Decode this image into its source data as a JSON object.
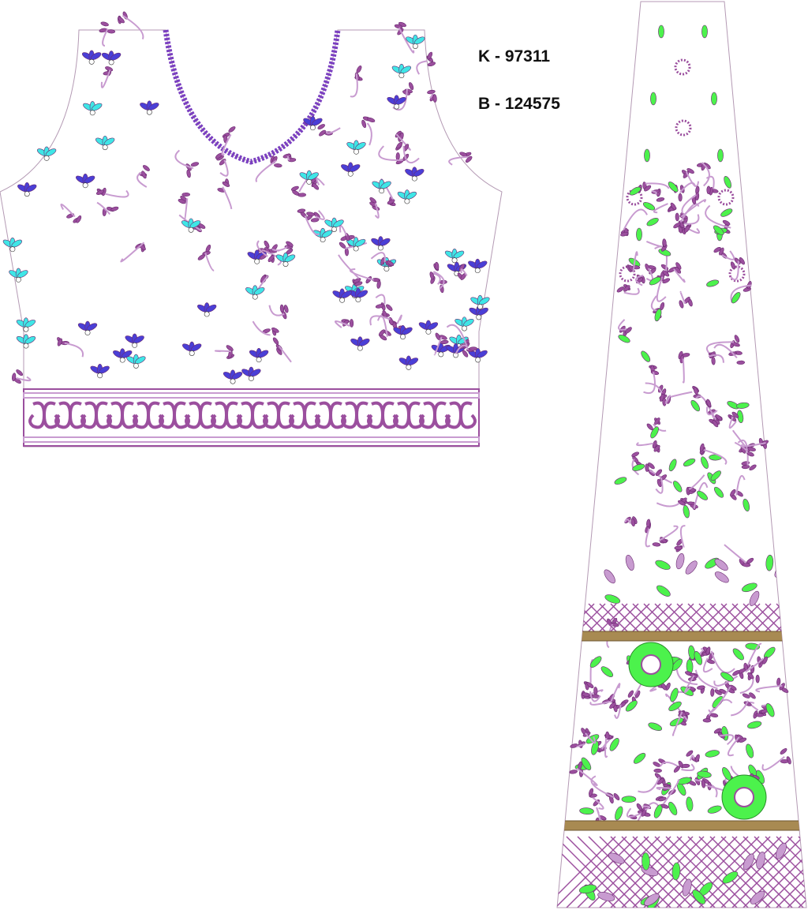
{
  "labels": {
    "k_code": "K - 97311",
    "b_code": "B - 124575"
  },
  "colors": {
    "purple": "#9b4f9e",
    "light_purple": "#c89bd0",
    "blue": "#4a3fd6",
    "cyan": "#3fe6e6",
    "green": "#4cf24c",
    "gold": "#a88a52",
    "outline": "#b49ab4"
  },
  "pieces": [
    {
      "name": "blouse-front",
      "motifs": [
        "purple leaf vines",
        "blue flowers",
        "cyan flowers",
        "scroll border"
      ]
    },
    {
      "name": "kalidar-panel",
      "motifs": [
        "green leaves",
        "purple leaf vines",
        "lattice bands",
        "gold lace bands"
      ]
    }
  ]
}
